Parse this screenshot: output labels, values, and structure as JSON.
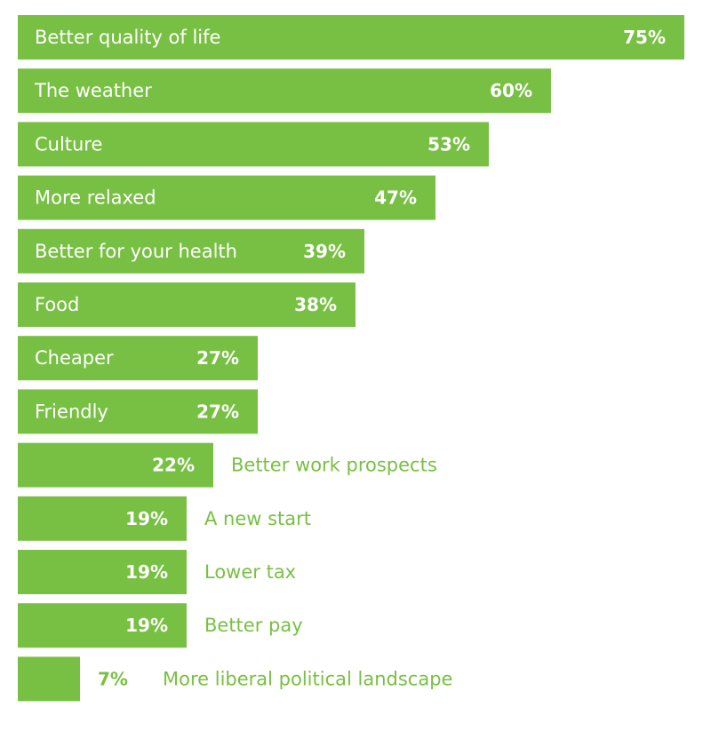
{
  "chart_data": {
    "type": "bar",
    "orientation": "horizontal",
    "categories": [
      "Better quality of life",
      "The weather",
      "Culture",
      "More relaxed",
      "Better for your health",
      "Food",
      "Cheaper",
      "Friendly",
      "Better work prospects",
      "A new start",
      "Lower tax",
      "Better pay",
      "More liberal political landscape"
    ],
    "values": [
      75,
      60,
      53,
      47,
      39,
      38,
      27,
      27,
      22,
      19,
      19,
      19,
      7
    ],
    "value_labels": [
      "75%",
      "60%",
      "53%",
      "47%",
      "39%",
      "38%",
      "27%",
      "27%",
      "22%",
      "19%",
      "19%",
      "19%",
      "7%"
    ],
    "title": "",
    "xlabel": "",
    "ylabel": "",
    "xlim": [
      0,
      75
    ],
    "grid": false,
    "legend": "none",
    "colors": {
      "bar": "#78c043",
      "inside_text": "#ffffff",
      "outside_text": "#78c043",
      "outside_value_text": "#ffffff"
    }
  }
}
